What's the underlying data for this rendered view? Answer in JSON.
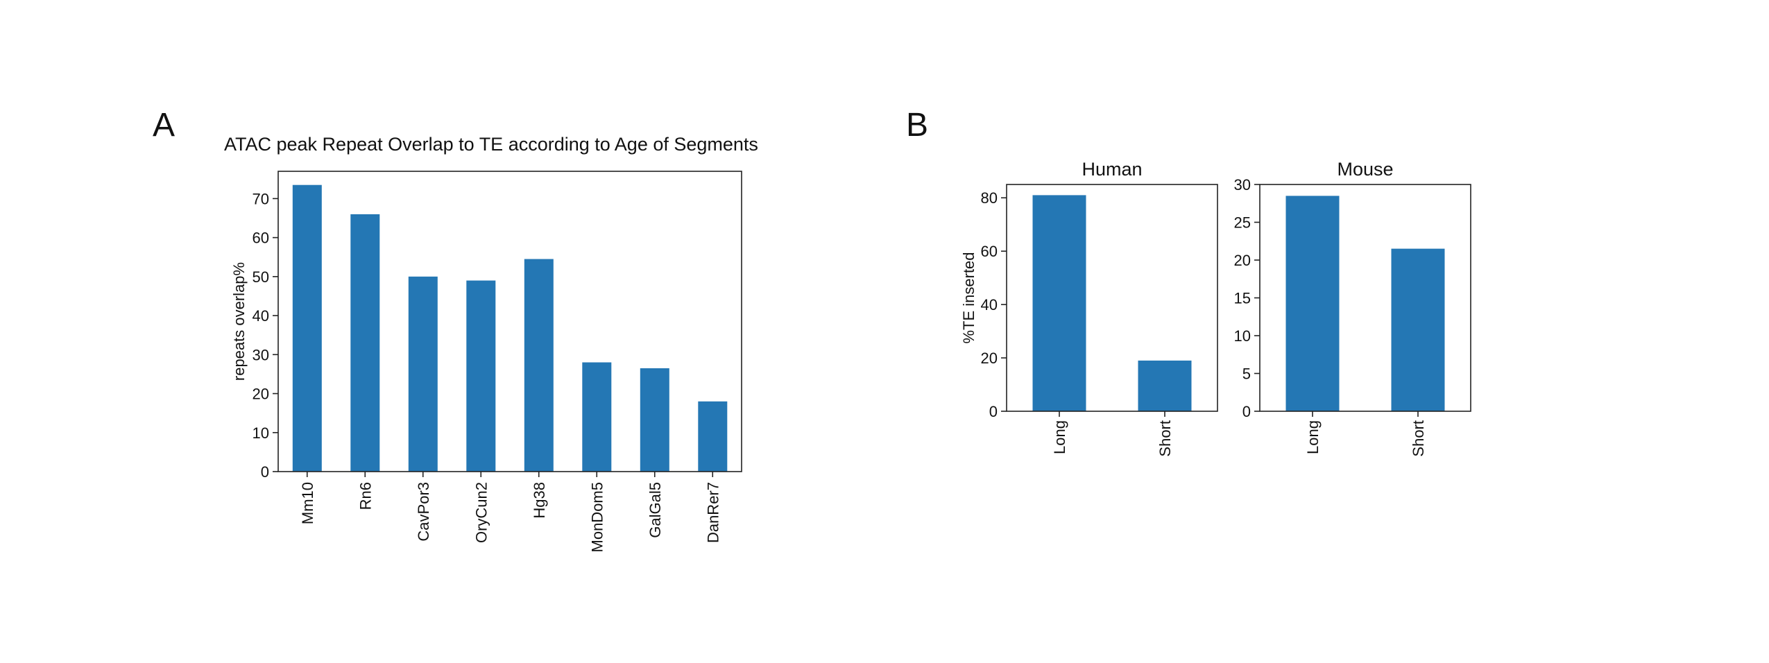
{
  "panels": {
    "a_label": "A",
    "b_label": "B"
  },
  "colors": {
    "bar": "#2477b4",
    "axis": "#222222"
  },
  "chart_data": [
    {
      "type": "bar",
      "title": "ATAC peak Repeat Overlap to TE according to Age of Segments",
      "xlabel": "",
      "ylabel": "repeats overlap%",
      "categories": [
        "Mm10",
        "Rn6",
        "CavPor3",
        "OryCun2",
        "Hg38",
        "MonDom5",
        "GalGal5",
        "DanRer7"
      ],
      "values": [
        73.5,
        66,
        50,
        49,
        54.5,
        28,
        26.5,
        18
      ],
      "ylim": [
        0,
        77
      ],
      "yticks": [
        0,
        10,
        20,
        30,
        40,
        50,
        60,
        70
      ],
      "grid": false,
      "legend": "none"
    },
    {
      "type": "bar",
      "title": "Human",
      "xlabel": "",
      "ylabel": "%TE inserted",
      "categories": [
        "Long",
        "Short"
      ],
      "values": [
        81,
        19
      ],
      "ylim": [
        0,
        85
      ],
      "yticks": [
        0,
        20,
        40,
        60,
        80
      ],
      "grid": false,
      "legend": "none"
    },
    {
      "type": "bar",
      "title": "Mouse",
      "xlabel": "",
      "ylabel": "",
      "categories": [
        "Long",
        "Short"
      ],
      "values": [
        28.5,
        21.5
      ],
      "ylim": [
        0,
        30
      ],
      "yticks": [
        0,
        5,
        10,
        15,
        20,
        25,
        30
      ],
      "grid": false,
      "legend": "none"
    }
  ]
}
